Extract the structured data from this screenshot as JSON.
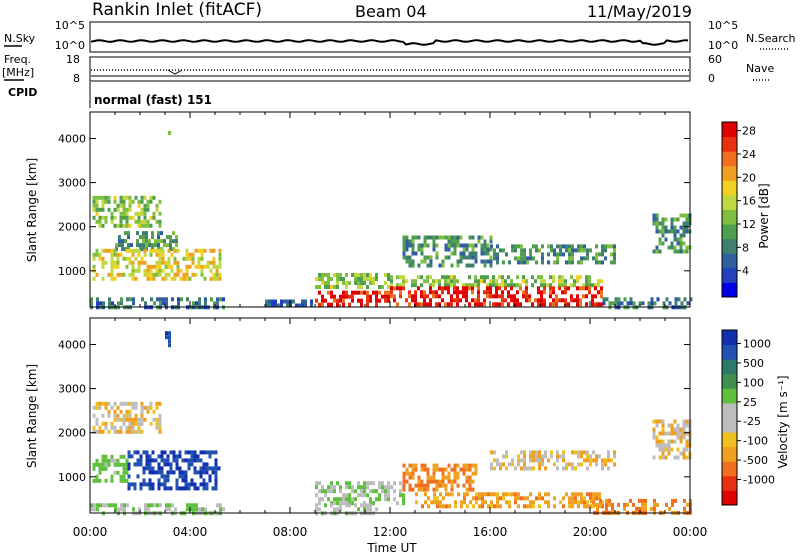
{
  "header": {
    "station": "Rankin Inlet (fitACF)",
    "beam": "Beam 04",
    "date": "11/May/2019"
  },
  "panels": {
    "nsky_label": "N.Sky",
    "nsky_ticks": [
      "10^5",
      "10^0"
    ],
    "nsearch_label": "N.Search",
    "nsearch_ticks": [
      "10^5",
      "10^0"
    ],
    "freq_label_1": "Freq.",
    "freq_label_2": "[MHz]",
    "freq_ticks": [
      "18",
      "8"
    ],
    "nave_label": "Nave",
    "nave_ticks": [
      "60",
      "0"
    ],
    "cpid_label": "CPID",
    "cpid_value": "normal (fast) 151"
  },
  "axes": {
    "ylabel": "Slant Range [km]",
    "xlabel": "Time UT",
    "y_ticks": [
      "1000",
      "2000",
      "3000",
      "4000"
    ],
    "x_ticks": [
      "00:00",
      "04:00",
      "08:00",
      "12:00",
      "16:00",
      "20:00",
      "00:00"
    ]
  },
  "colorbars": {
    "power": {
      "title": "Power [dB]",
      "ticks": [
        "4",
        "8",
        "12",
        "16",
        "20",
        "24",
        "28"
      ],
      "colors": [
        "#0000e6",
        "#1f3fbf",
        "#2f5f9f",
        "#3f7f6f",
        "#4f9f4f",
        "#7fbf3f",
        "#bfd83f",
        "#f0d020",
        "#f0a020",
        "#f07020",
        "#e83010",
        "#e00000"
      ]
    },
    "velocity": {
      "title": "Velocity [m s⁻¹]",
      "ticks": [
        "1000",
        "500",
        "100",
        "25",
        "-25",
        "-100",
        "-500",
        "-1000"
      ],
      "colors": [
        "#1030b0",
        "#2050b0",
        "#2e7a6a",
        "#3f8f4f",
        "#5fc040",
        "#bdbdbd",
        "#bdbdbd",
        "#f0c020",
        "#f0a020",
        "#f07020",
        "#e83010",
        "#e00000"
      ]
    }
  },
  "chart_data": [
    {
      "type": "heatmap",
      "name": "power",
      "x_range_hours": [
        0,
        24
      ],
      "y_range_km": [
        180,
        4600
      ],
      "colorbar_range_db": [
        0,
        30
      ],
      "regions": [
        {
          "t": [
            0.1,
            2.8
          ],
          "r": [
            2050,
            2700
          ],
          "v": 14
        },
        {
          "t": [
            1.0,
            3.5
          ],
          "r": [
            1500,
            1900
          ],
          "v": 11
        },
        {
          "t": [
            0.1,
            5.2
          ],
          "r": [
            800,
            1500
          ],
          "v": 18
        },
        {
          "t": [
            3.0,
            3.2
          ],
          "r": [
            4150,
            4350
          ],
          "v": 12
        },
        {
          "t": [
            0.0,
            5.3
          ],
          "r": [
            200,
            400
          ],
          "v": 8
        },
        {
          "t": [
            7.0,
            9.0
          ],
          "r": [
            200,
            350
          ],
          "v": 6
        },
        {
          "t": [
            9.0,
            12.0
          ],
          "r": [
            600,
            950
          ],
          "v": 14
        },
        {
          "t": [
            9.0,
            12.0
          ],
          "r": [
            220,
            550
          ],
          "v": 28
        },
        {
          "t": [
            12.0,
            20.5
          ],
          "r": [
            650,
            900
          ],
          "v": 14
        },
        {
          "t": [
            12.0,
            20.5
          ],
          "r": [
            250,
            650
          ],
          "v": 28
        },
        {
          "t": [
            12.5,
            16.0
          ],
          "r": [
            1100,
            1800
          ],
          "v": 10
        },
        {
          "t": [
            16.0,
            21.0
          ],
          "r": [
            1200,
            1600
          ],
          "v": 10
        },
        {
          "t": [
            20.5,
            24.0
          ],
          "r": [
            200,
            400
          ],
          "v": 8
        },
        {
          "t": [
            22.5,
            24.0
          ],
          "r": [
            1400,
            2300
          ],
          "v": 10
        }
      ]
    },
    {
      "type": "heatmap",
      "name": "velocity",
      "x_range_hours": [
        0,
        24
      ],
      "y_range_km": [
        180,
        4600
      ],
      "colorbar_range_ms": [
        -1000,
        1000
      ],
      "regions": [
        {
          "t": [
            0.1,
            2.8
          ],
          "r": [
            2050,
            2700
          ],
          "v": 0
        },
        {
          "t": [
            0.1,
            1.5
          ],
          "r": [
            900,
            1500
          ],
          "v": 150
        },
        {
          "t": [
            1.5,
            5.2
          ],
          "r": [
            750,
            1600
          ],
          "v": 1000
        },
        {
          "t": [
            3.0,
            3.2
          ],
          "r": [
            4000,
            4300
          ],
          "v": 1000
        },
        {
          "t": [
            0.0,
            5.3
          ],
          "r": [
            200,
            400
          ],
          "v": 100
        },
        {
          "t": [
            9.0,
            12.5
          ],
          "r": [
            400,
            900
          ],
          "v": 100
        },
        {
          "t": [
            9.0,
            11.5
          ],
          "r": [
            200,
            400
          ],
          "v": 60
        },
        {
          "t": [
            12.5,
            15.5
          ],
          "r": [
            700,
            1300
          ],
          "v": -100
        },
        {
          "t": [
            13.0,
            20.5
          ],
          "r": [
            300,
            650
          ],
          "v": -60
        },
        {
          "t": [
            16.0,
            21.0
          ],
          "r": [
            1200,
            1600
          ],
          "v": 0
        },
        {
          "t": [
            20.0,
            24.0
          ],
          "r": [
            200,
            500
          ],
          "v": -100
        },
        {
          "t": [
            22.5,
            24.0
          ],
          "r": [
            1400,
            2300
          ],
          "v": 0
        }
      ]
    }
  ]
}
